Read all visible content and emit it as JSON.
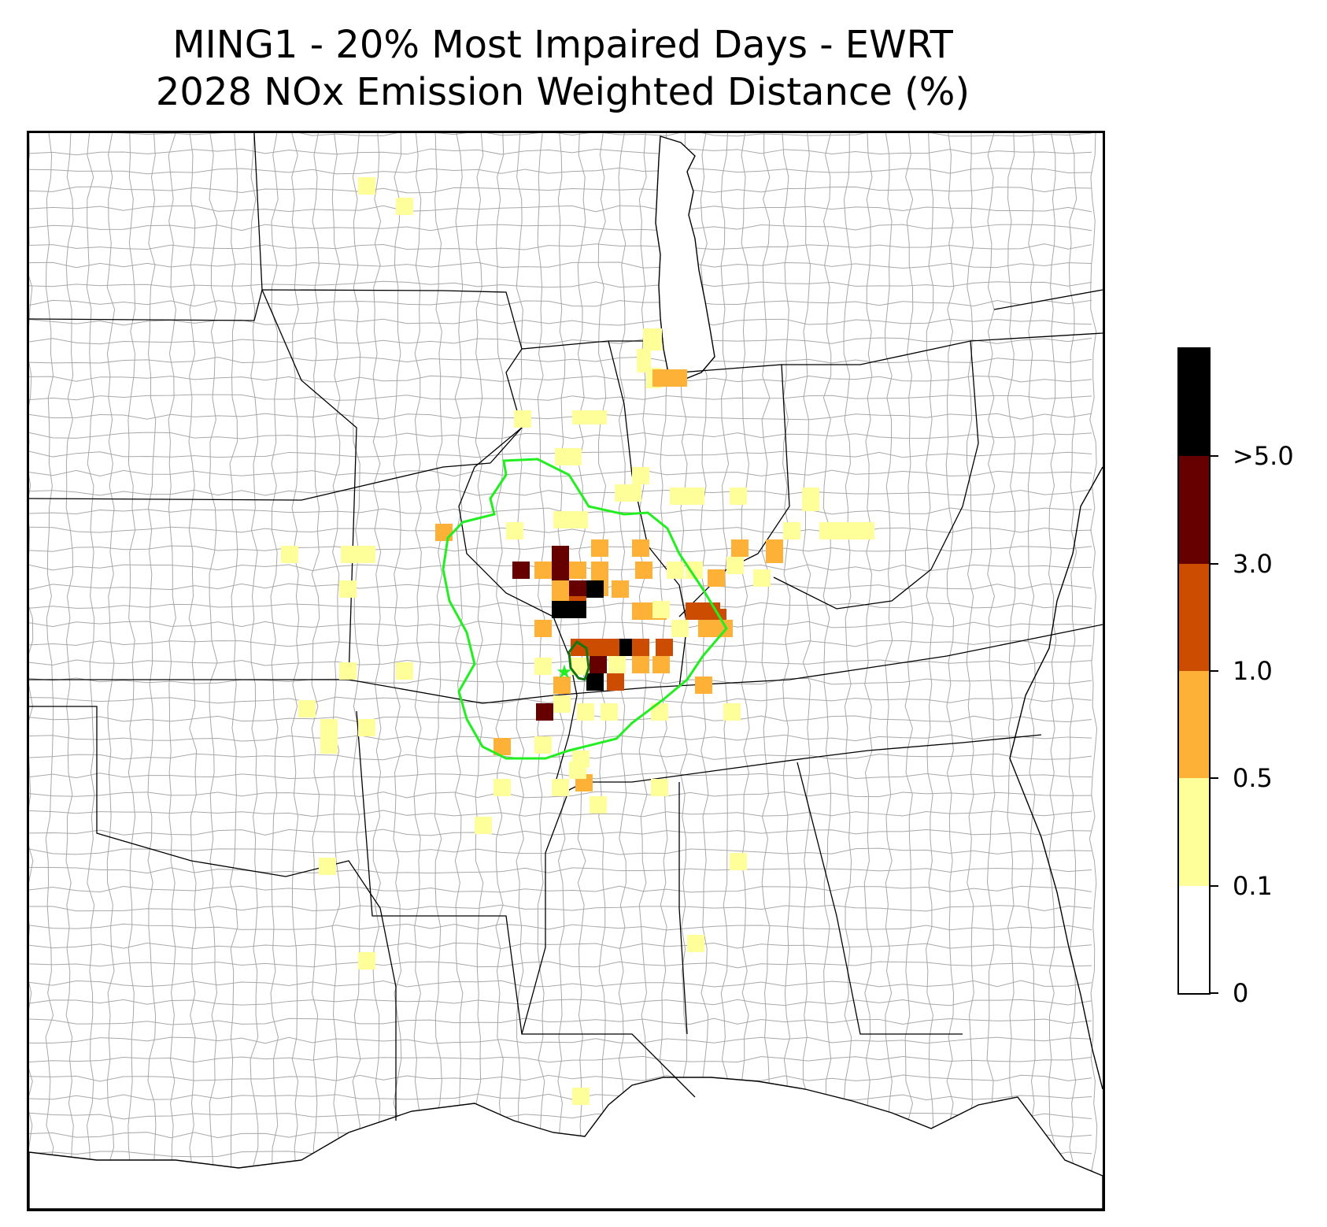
{
  "title": {
    "line1": "MING1 - 20% Most Impaired Days - EWRT",
    "line2": "2028 NOx Emission Weighted Distance (%)"
  },
  "map": {
    "region": "Central and Eastern United States with state and county boundaries",
    "receptor_site": "MING1",
    "receptor_marker": "star-icon",
    "contour_colors": {
      "outer_boundary": "#22ee22",
      "inner_boundary": "#117711"
    }
  },
  "colorbar": {
    "ticks": [
      "0",
      "0.1",
      "0.5",
      "1.0",
      "3.0",
      ">5.0"
    ],
    "bins": [
      {
        "range": "0 - 0.1",
        "color": "#ffffff"
      },
      {
        "range": "0.1 - 0.5",
        "color": "#ffff99"
      },
      {
        "range": "0.5 - 1.0",
        "color": "#fdb237"
      },
      {
        "range": "1.0 - 3.0",
        "color": "#cc4c02"
      },
      {
        "range": "3.0 - 5.0",
        "color": "#660000"
      },
      {
        "range": ">5.0",
        "color": "#000000"
      }
    ]
  }
}
